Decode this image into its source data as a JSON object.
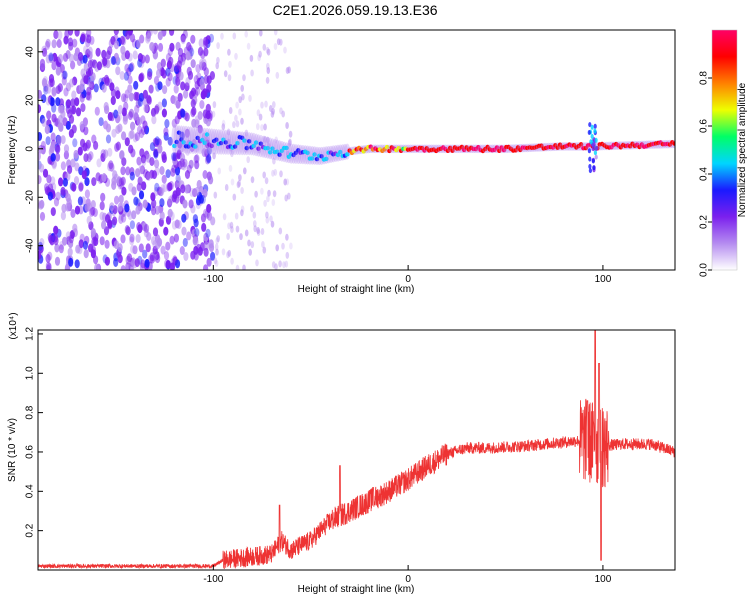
{
  "title": "C2E1.2026.059.19.13.E36",
  "chart_data": [
    {
      "type": "heatmap",
      "name": "spectrogram",
      "xlabel": "Height of straight line (km)",
      "ylabel": "Frequency (Hz)",
      "xlim": [
        -190,
        137
      ],
      "ylim": [
        -50,
        49
      ],
      "xticks": [
        -100,
        0,
        100
      ],
      "xtick_labels": [
        "-100",
        "0",
        "100"
      ],
      "yticks": [
        -40,
        -20,
        0,
        20,
        40
      ],
      "ytick_labels": [
        "-40",
        "-20",
        "0",
        "20",
        "40"
      ],
      "signal_ridge": [
        {
          "x": -120,
          "freq": 4
        },
        {
          "x": -100,
          "freq": 3
        },
        {
          "x": -80,
          "freq": 2
        },
        {
          "x": -60,
          "freq": -2
        },
        {
          "x": -45,
          "freq": -3
        },
        {
          "x": -30,
          "freq": -1
        },
        {
          "x": -20,
          "freq": 0
        },
        {
          "x": 0,
          "freq": 0
        },
        {
          "x": 50,
          "freq": 0
        },
        {
          "x": 80,
          "freq": 1
        },
        {
          "x": 95,
          "freq": 1
        },
        {
          "x": 137,
          "freq": 2
        }
      ],
      "noise_region_x": [
        -190,
        -100
      ],
      "colorbar": {
        "label": "Normalized spectral amplitude",
        "range": [
          0.0,
          1.0
        ],
        "ticks": [
          0.0,
          0.2,
          0.4,
          0.6,
          0.8
        ],
        "tick_labels": [
          "0.0",
          "0.2",
          "0.4",
          "0.6",
          "0.8"
        ],
        "colors": [
          "#ffffff",
          "#b58cf0",
          "#7b20ee",
          "#1a1aff",
          "#00d5ff",
          "#00ff66",
          "#eeff00",
          "#ff8000",
          "#ff0000",
          "#ff0066"
        ]
      }
    },
    {
      "type": "line",
      "name": "snr",
      "xlabel": "Height of straight line (km)",
      "ylabel": "SNR (10 * v/v)",
      "y_scale_label": "(x10⁴)",
      "xlim": [
        -190,
        137
      ],
      "ylim": [
        0.0,
        1.22
      ],
      "xticks": [
        -100,
        0,
        100
      ],
      "xtick_labels": [
        "-100",
        "0",
        "100"
      ],
      "yticks": [
        0.2,
        0.4,
        0.6,
        0.8,
        1.0,
        1.2
      ],
      "ytick_labels": [
        "0.2",
        "0.4",
        "0.6",
        "0.8",
        "1.0",
        "1.2"
      ],
      "color": "#ee3333",
      "envelope": [
        {
          "x": -190,
          "y": 0.02
        },
        {
          "x": -100,
          "y": 0.02
        },
        {
          "x": -95,
          "y": 0.05
        },
        {
          "x": -70,
          "y": 0.08
        },
        {
          "x": -65,
          "y": 0.15
        },
        {
          "x": -60,
          "y": 0.1
        },
        {
          "x": -50,
          "y": 0.15
        },
        {
          "x": -40,
          "y": 0.25
        },
        {
          "x": -30,
          "y": 0.3
        },
        {
          "x": -20,
          "y": 0.35
        },
        {
          "x": -10,
          "y": 0.4
        },
        {
          "x": 0,
          "y": 0.46
        },
        {
          "x": 10,
          "y": 0.53
        },
        {
          "x": 20,
          "y": 0.59
        },
        {
          "x": 30,
          "y": 0.62
        },
        {
          "x": 40,
          "y": 0.62
        },
        {
          "x": 60,
          "y": 0.63
        },
        {
          "x": 80,
          "y": 0.65
        },
        {
          "x": 90,
          "y": 0.66
        },
        {
          "x": 100,
          "y": 0.63
        },
        {
          "x": 110,
          "y": 0.64
        },
        {
          "x": 125,
          "y": 0.64
        },
        {
          "x": 137,
          "y": 0.6
        }
      ],
      "peaks": [
        {
          "x": -66,
          "y": 0.33
        },
        {
          "x": -35,
          "y": 0.53
        },
        {
          "x": -18,
          "y": 0.42
        },
        {
          "x": 92,
          "y": 0.86
        },
        {
          "x": 96,
          "y": 1.22
        },
        {
          "x": 98,
          "y": 1.05
        },
        {
          "x": 99,
          "y": 0.05
        }
      ]
    }
  ]
}
